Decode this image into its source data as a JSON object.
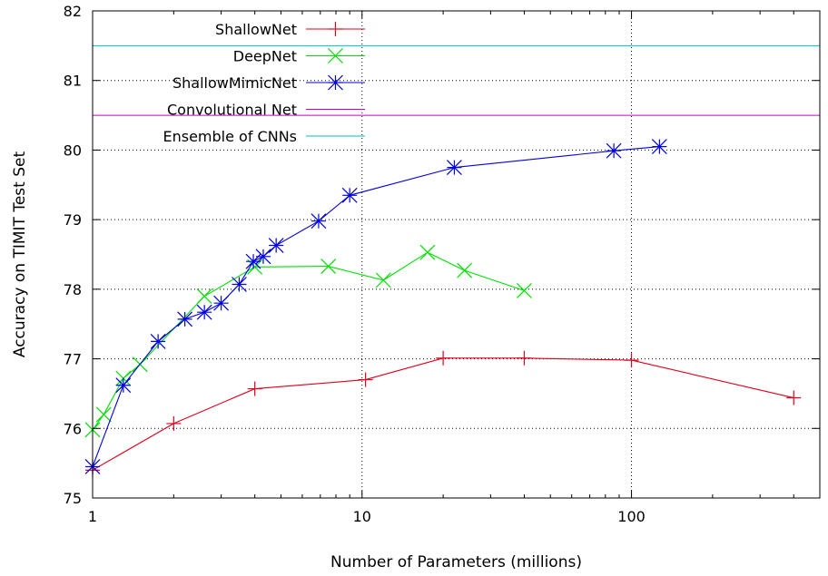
{
  "chart_data": {
    "type": "line",
    "title": "",
    "xlabel": "Number of Parameters (millions)",
    "ylabel": "Accuracy on TIMIT Test Set",
    "xscale": "log",
    "xlim": [
      1,
      500
    ],
    "ylim": [
      75,
      82
    ],
    "xticks": [
      1,
      10,
      100
    ],
    "xtick_labels": [
      "1",
      "10",
      "100"
    ],
    "yticks": [
      75,
      76,
      77,
      78,
      79,
      80,
      81,
      82
    ],
    "ytick_labels": [
      "75",
      "76",
      "77",
      "78",
      "79",
      "80",
      "81",
      "82"
    ],
    "grid": true,
    "legend_position": "top-left",
    "series": [
      {
        "name": "ShallowNet",
        "color": "#e0001b",
        "marker": "plus",
        "x": [
          1,
          2,
          4,
          10.3,
          20,
          40,
          100,
          400
        ],
        "y": [
          75.4,
          76.07,
          76.57,
          76.7,
          77.01,
          77.01,
          76.98,
          76.44
        ]
      },
      {
        "name": "DeepNet",
        "color": "#00e000",
        "marker": "cross",
        "x": [
          1,
          1.1,
          1.3,
          1.5,
          2.6,
          4,
          7.5,
          12,
          17.5,
          24,
          40
        ],
        "y": [
          75.98,
          76.2,
          76.72,
          76.92,
          77.9,
          78.32,
          78.33,
          78.13,
          78.53,
          78.27,
          77.98
        ]
      },
      {
        "name": "ShallowMimicNet",
        "color": "#0000e0",
        "marker": "star",
        "x": [
          1,
          1.3,
          1.75,
          2.2,
          2.6,
          3,
          3.5,
          3.95,
          4.3,
          4.8,
          6.9,
          9,
          22,
          86,
          127
        ],
        "y": [
          75.45,
          76.62,
          77.25,
          77.57,
          77.67,
          77.8,
          78.07,
          78.4,
          78.47,
          78.63,
          78.98,
          79.35,
          79.75,
          79.99,
          80.05
        ]
      },
      {
        "name": "Convolutional Net",
        "color": "#c000c0",
        "marker": "none",
        "constant": 80.5
      },
      {
        "name": "Ensemble of CNNs",
        "color": "#00c0c0",
        "marker": "none",
        "constant": 81.5
      }
    ]
  }
}
